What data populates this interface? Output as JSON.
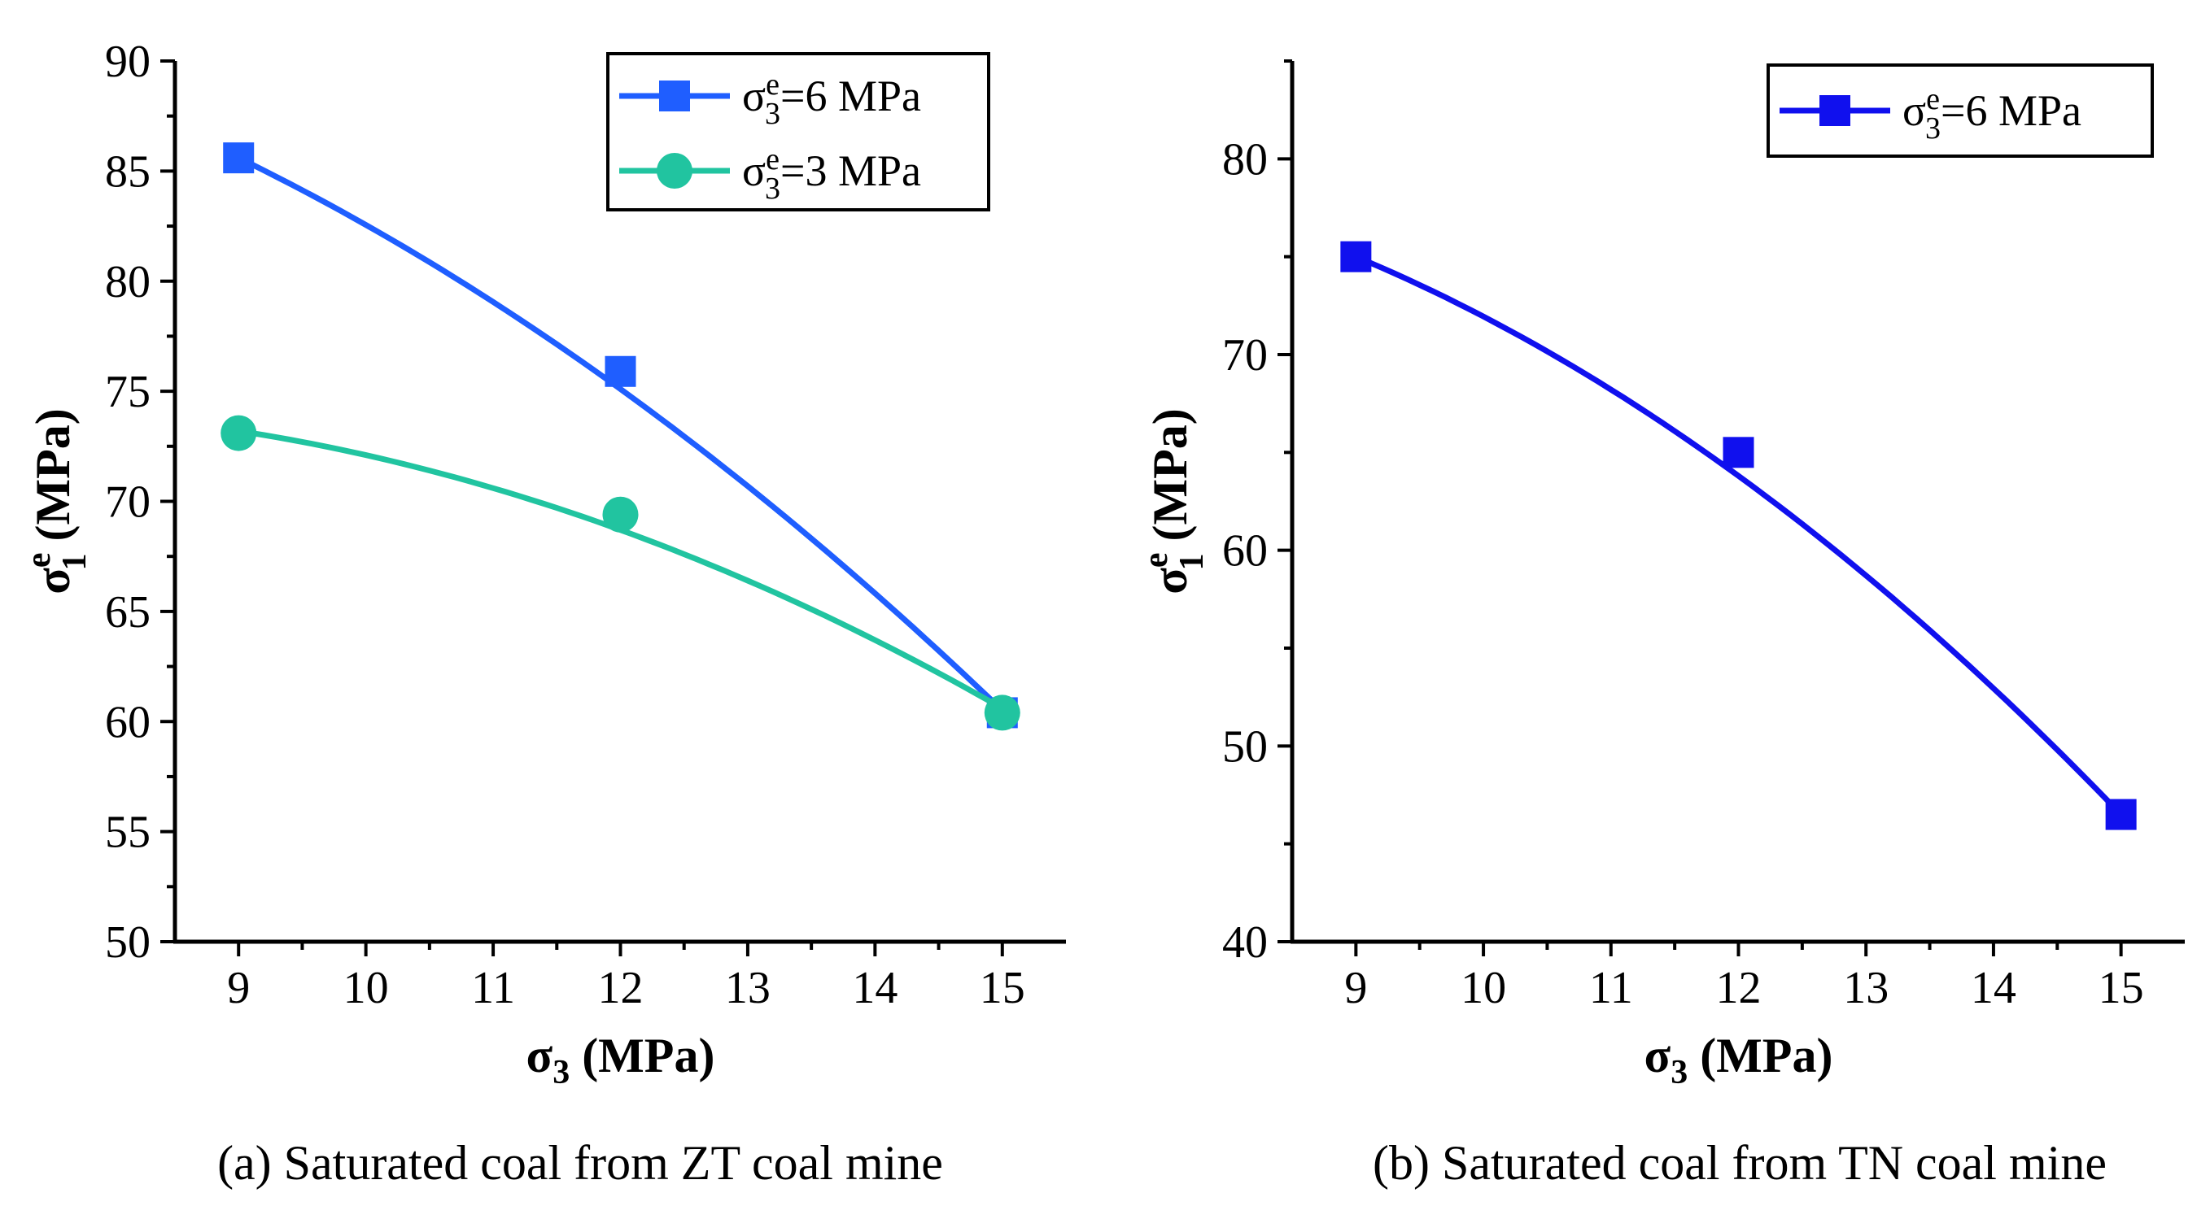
{
  "chart_data": [
    {
      "type": "line",
      "caption": "(a) Saturated coal  from ZT coal mine",
      "x": [
        9,
        12,
        15
      ],
      "xlim": [
        8.5,
        15.5
      ],
      "ylim": [
        50,
        90
      ],
      "xticks": [
        9,
        10,
        11,
        12,
        13,
        14,
        15
      ],
      "yticks": [
        50,
        55,
        60,
        65,
        70,
        75,
        80,
        85,
        90
      ],
      "xlabel": {
        "symbol": "σ",
        "sub": "3",
        "unit": "(MPa)"
      },
      "ylabel": {
        "symbol": "σ",
        "sup": "e",
        "sub": "1",
        "unit": "(MPa)"
      },
      "legend_position": "top-right",
      "series": [
        {
          "name": "σe3=6 MPa",
          "label": {
            "symbol": "σ",
            "sup": "e",
            "sub": "3",
            "rest": "=6 MPa"
          },
          "marker": "square",
          "color": "#1f5eff",
          "values": [
            85.6,
            75.9,
            60.4
          ],
          "fit": [
            85.6,
            75.1,
            60.5
          ]
        },
        {
          "name": "σe3=3 MPa",
          "label": {
            "symbol": "σ",
            "sup": "e",
            "sub": "3",
            "rest": "=3 MPa"
          },
          "marker": "circle",
          "color": "#21c4a0",
          "values": [
            73.1,
            69.4,
            60.4
          ],
          "fit": [
            73.2,
            68.7,
            60.6
          ]
        }
      ]
    },
    {
      "type": "line",
      "caption": "(b) Saturated coal  from TN coal mine",
      "x": [
        9,
        12,
        15
      ],
      "xlim": [
        8.5,
        15.5
      ],
      "ylim": [
        40,
        85
      ],
      "xticks": [
        9,
        10,
        11,
        12,
        13,
        14,
        15
      ],
      "yticks": [
        40,
        50,
        60,
        70,
        80
      ],
      "xlabel": {
        "symbol": "σ",
        "sub": "3",
        "unit": "(MPa)"
      },
      "ylabel": {
        "symbol": "σ",
        "sup": "e",
        "sub": "1",
        "unit": "(MPa)"
      },
      "legend_position": "top-right",
      "series": [
        {
          "name": "σe3=6 MPa",
          "label": {
            "symbol": "σ",
            "sup": "e",
            "sub": "3",
            "rest": "=6 MPa"
          },
          "marker": "square",
          "color": "#1010ee",
          "values": [
            75.0,
            65.0,
            46.5
          ],
          "fit": [
            75.0,
            63.8,
            46.5
          ]
        }
      ]
    }
  ]
}
